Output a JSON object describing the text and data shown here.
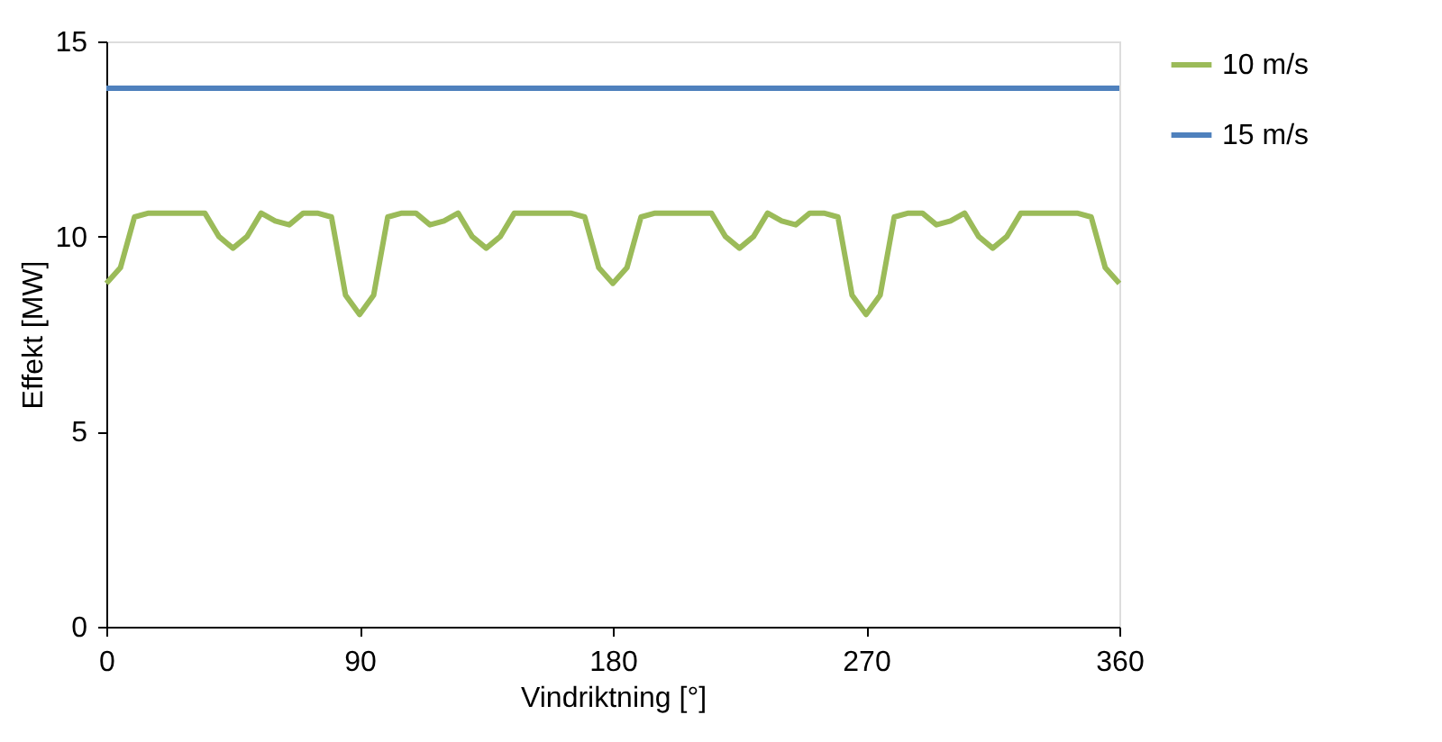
{
  "chart_data": {
    "type": "line",
    "xlabel": "Vindriktning [°]",
    "ylabel": "Effekt  [MW]",
    "x": [
      0,
      5,
      10,
      15,
      20,
      25,
      30,
      35,
      40,
      45,
      50,
      55,
      60,
      65,
      70,
      75,
      80,
      85,
      90,
      95,
      100,
      105,
      110,
      115,
      120,
      125,
      130,
      135,
      140,
      145,
      150,
      155,
      160,
      165,
      170,
      175,
      180,
      185,
      190,
      195,
      200,
      205,
      210,
      215,
      220,
      225,
      230,
      235,
      240,
      245,
      250,
      255,
      260,
      265,
      270,
      275,
      280,
      285,
      290,
      295,
      300,
      305,
      310,
      315,
      320,
      325,
      330,
      335,
      340,
      345,
      350,
      355,
      360
    ],
    "series": [
      {
        "name": "10 m/s",
        "color": "#9bbb59",
        "values": [
          8.8,
          9.2,
          10.5,
          10.6,
          10.6,
          10.6,
          10.6,
          10.6,
          10.0,
          9.7,
          10.0,
          10.6,
          10.4,
          10.3,
          10.6,
          10.6,
          10.5,
          8.5,
          8.0,
          8.5,
          10.5,
          10.6,
          10.6,
          10.3,
          10.4,
          10.6,
          10.0,
          9.7,
          10.0,
          10.6,
          10.6,
          10.6,
          10.6,
          10.6,
          10.5,
          9.2,
          8.8,
          9.2,
          10.5,
          10.6,
          10.6,
          10.6,
          10.6,
          10.6,
          10.0,
          9.7,
          10.0,
          10.6,
          10.4,
          10.3,
          10.6,
          10.6,
          10.5,
          8.5,
          8.0,
          8.5,
          10.5,
          10.6,
          10.6,
          10.3,
          10.4,
          10.6,
          10.0,
          9.7,
          10.0,
          10.6,
          10.6,
          10.6,
          10.6,
          10.6,
          10.5,
          9.2,
          8.8
        ]
      },
      {
        "name": "15 m/s",
        "color": "#4f81bd",
        "values": [
          13.8,
          13.8,
          13.8,
          13.8,
          13.8,
          13.8,
          13.8,
          13.8,
          13.8,
          13.8,
          13.8,
          13.8,
          13.8,
          13.8,
          13.8,
          13.8,
          13.8,
          13.8,
          13.8,
          13.8,
          13.8,
          13.8,
          13.8,
          13.8,
          13.8,
          13.8,
          13.8,
          13.8,
          13.8,
          13.8,
          13.8,
          13.8,
          13.8,
          13.8,
          13.8,
          13.8,
          13.8,
          13.8,
          13.8,
          13.8,
          13.8,
          13.8,
          13.8,
          13.8,
          13.8,
          13.8,
          13.8,
          13.8,
          13.8,
          13.8,
          13.8,
          13.8,
          13.8,
          13.8,
          13.8,
          13.8,
          13.8,
          13.8,
          13.8,
          13.8,
          13.8,
          13.8,
          13.8,
          13.8,
          13.8,
          13.8,
          13.8,
          13.8,
          13.8,
          13.8,
          13.8,
          13.8,
          13.8
        ]
      }
    ],
    "xlim": [
      0,
      360
    ],
    "xticks": [
      0,
      90,
      180,
      270,
      360
    ],
    "ylim": [
      0,
      15
    ],
    "yticks": [
      0,
      5,
      10,
      15
    ],
    "grid": false,
    "legend": "right",
    "marker": "none",
    "line_style": "solid"
  }
}
